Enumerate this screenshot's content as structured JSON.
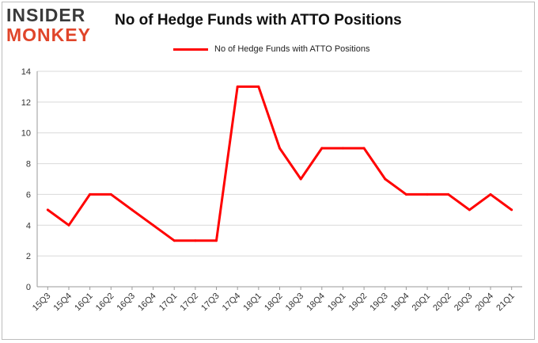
{
  "logo": {
    "line1": "INSIDER",
    "line2": "MONKEY"
  },
  "chart_data": {
    "type": "line",
    "title": "No of Hedge Funds with ATTO Positions",
    "categories": [
      "15Q3",
      "15Q4",
      "16Q1",
      "16Q2",
      "16Q3",
      "16Q4",
      "17Q1",
      "17Q2",
      "17Q3",
      "17Q4",
      "18Q1",
      "18Q2",
      "18Q3",
      "18Q4",
      "19Q1",
      "19Q2",
      "19Q3",
      "19Q4",
      "20Q1",
      "20Q2",
      "20Q3",
      "20Q4",
      "21Q1"
    ],
    "series": [
      {
        "name": "No of Hedge Funds with ATTO Positions",
        "color": "#ff0000",
        "values": [
          5,
          4,
          6,
          6,
          5,
          4,
          3,
          3,
          3,
          13,
          13,
          9,
          7,
          9,
          9,
          9,
          7,
          6,
          6,
          6,
          5,
          6,
          5
        ]
      }
    ],
    "ylim": [
      0,
      14
    ],
    "yticks": [
      0,
      2,
      4,
      6,
      8,
      10,
      12,
      14
    ],
    "xlabel": "",
    "ylabel": "",
    "grid": true,
    "legend_position": "top-center"
  }
}
